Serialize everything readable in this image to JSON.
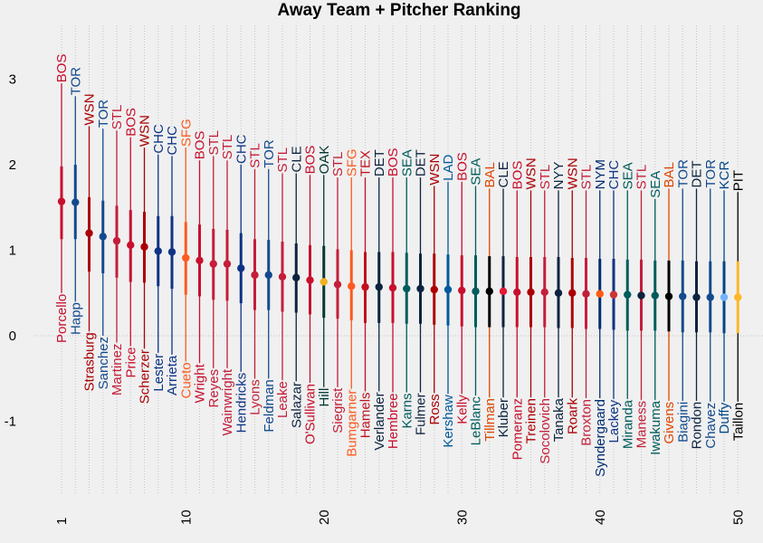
{
  "chart_data": {
    "type": "scatter",
    "title": "Away Team + Pitcher Ranking",
    "xlabel": "",
    "ylabel": "",
    "xlim": [
      0.2,
      51.8
    ],
    "ylim": [
      -1.85,
      3.9
    ],
    "x_ticks": [
      1,
      10,
      20,
      30,
      40,
      50
    ],
    "y_ticks": [
      -1,
      0,
      1,
      2,
      3
    ],
    "grid": "vertical dotted lines at each rank",
    "points": [
      {
        "rank": 1,
        "pitcher": "Porcello",
        "team": "BOS",
        "mean": 1.57,
        "low": 1.13,
        "high": 1.98,
        "low_outer": 0.5,
        "high_outer": 2.95,
        "color": "#C8102E"
      },
      {
        "rank": 2,
        "pitcher": "Happ",
        "team": "TOR",
        "mean": 1.56,
        "low": 1.13,
        "high": 2.0,
        "low_outer": 0.4,
        "high_outer": 2.8,
        "color": "#134A8E"
      },
      {
        "rank": 3,
        "pitcher": "Strasburg",
        "team": "WSN",
        "mean": 1.2,
        "low": 0.75,
        "high": 1.62,
        "low_outer": 0.05,
        "high_outer": 2.45,
        "color": "#AB0003"
      },
      {
        "rank": 4,
        "pitcher": "Sanchez",
        "team": "TOR",
        "mean": 1.16,
        "low": 0.73,
        "high": 1.58,
        "low_outer": 0.0,
        "high_outer": 2.42,
        "color": "#134A8E"
      },
      {
        "rank": 5,
        "pitcher": "Martinez",
        "team": "STL",
        "mean": 1.11,
        "low": 0.68,
        "high": 1.52,
        "low_outer": -0.08,
        "high_outer": 2.4,
        "color": "#C41E3A"
      },
      {
        "rank": 6,
        "pitcher": "Price",
        "team": "BOS",
        "mean": 1.06,
        "low": 0.63,
        "high": 1.47,
        "low_outer": -0.12,
        "high_outer": 2.32,
        "color": "#C8102E"
      },
      {
        "rank": 7,
        "pitcher": "Scherzer",
        "team": "WSN",
        "mean": 1.04,
        "low": 0.62,
        "high": 1.45,
        "low_outer": -0.15,
        "high_outer": 2.2,
        "color": "#AB0003"
      },
      {
        "rank": 8,
        "pitcher": "Lester",
        "team": "CHC",
        "mean": 0.99,
        "low": 0.58,
        "high": 1.4,
        "low_outer": -0.2,
        "high_outer": 2.12,
        "color": "#0E3386"
      },
      {
        "rank": 9,
        "pitcher": "Arrieta",
        "team": "CHC",
        "mean": 0.98,
        "low": 0.55,
        "high": 1.4,
        "low_outer": -0.22,
        "high_outer": 2.1,
        "color": "#0E3386"
      },
      {
        "rank": 10,
        "pitcher": "Cueto",
        "team": "SFG",
        "mean": 0.91,
        "low": 0.48,
        "high": 1.33,
        "low_outer": -0.3,
        "high_outer": 2.2,
        "color": "#FD5A1E"
      },
      {
        "rank": 11,
        "pitcher": "Wright",
        "team": "BOS",
        "mean": 0.88,
        "low": 0.46,
        "high": 1.3,
        "low_outer": -0.32,
        "high_outer": 2.05,
        "color": "#C8102E"
      },
      {
        "rank": 12,
        "pitcher": "Reyes",
        "team": "STL",
        "mean": 0.84,
        "low": 0.42,
        "high": 1.25,
        "low_outer": -0.38,
        "high_outer": 2.1,
        "color": "#C41E3A"
      },
      {
        "rank": 13,
        "pitcher": "Wainwright",
        "team": "STL",
        "mean": 0.84,
        "low": 0.41,
        "high": 1.24,
        "low_outer": -0.38,
        "high_outer": 2.05,
        "color": "#C41E3A"
      },
      {
        "rank": 14,
        "pitcher": "Hendricks",
        "team": "CHC",
        "mean": 0.79,
        "low": 0.38,
        "high": 1.2,
        "low_outer": -0.42,
        "high_outer": 2.0,
        "color": "#0E3386"
      },
      {
        "rank": 15,
        "pitcher": "Lyons",
        "team": "STL",
        "mean": 0.71,
        "low": 0.3,
        "high": 1.13,
        "low_outer": -0.5,
        "high_outer": 1.95,
        "color": "#C41E3A"
      },
      {
        "rank": 16,
        "pitcher": "Feldman",
        "team": "TOR",
        "mean": 0.71,
        "low": 0.3,
        "high": 1.12,
        "low_outer": -0.5,
        "high_outer": 1.95,
        "color": "#134A8E"
      },
      {
        "rank": 17,
        "pitcher": "Leake",
        "team": "STL",
        "mean": 0.69,
        "low": 0.28,
        "high": 1.1,
        "low_outer": -0.52,
        "high_outer": 1.9,
        "color": "#C41E3A"
      },
      {
        "rank": 18,
        "pitcher": "Salazar",
        "team": "CLE",
        "mean": 0.68,
        "low": 0.27,
        "high": 1.08,
        "low_outer": -0.53,
        "high_outer": 1.9,
        "color": "#0C2340"
      },
      {
        "rank": 19,
        "pitcher": "O'Sullivan",
        "team": "BOS",
        "mean": 0.65,
        "low": 0.25,
        "high": 1.06,
        "low_outer": -0.55,
        "high_outer": 1.88,
        "color": "#C8102E"
      },
      {
        "rank": 20,
        "pitcher": "Hill",
        "team": "OAK",
        "mean": 0.63,
        "low": 0.21,
        "high": 1.05,
        "low_outer": -0.6,
        "high_outer": 1.88,
        "color": "#003831",
        "dot_color": "#EFB21E"
      },
      {
        "rank": 21,
        "pitcher": "Siegrist",
        "team": "STL",
        "mean": 0.6,
        "low": 0.2,
        "high": 1.01,
        "low_outer": -0.6,
        "high_outer": 1.85,
        "color": "#C41E3A"
      },
      {
        "rank": 22,
        "pitcher": "Bumgarner",
        "team": "SFG",
        "mean": 0.58,
        "low": 0.18,
        "high": 1.0,
        "low_outer": -0.62,
        "high_outer": 1.85,
        "color": "#FD5A1E",
        "dot_color": "#FD5A1E"
      },
      {
        "rank": 23,
        "pitcher": "Hamels",
        "team": "TEX",
        "mean": 0.57,
        "low": 0.15,
        "high": 0.98,
        "low_outer": -0.65,
        "high_outer": 1.85,
        "color": "#C0111F"
      },
      {
        "rank": 24,
        "pitcher": "Verlander",
        "team": "DET",
        "mean": 0.57,
        "low": 0.15,
        "high": 0.98,
        "low_outer": -0.65,
        "high_outer": 1.85,
        "color": "#0C2340"
      },
      {
        "rank": 25,
        "pitcher": "Hembree",
        "team": "BOS",
        "mean": 0.56,
        "low": 0.15,
        "high": 0.98,
        "low_outer": -0.66,
        "high_outer": 1.85,
        "color": "#C8102E"
      },
      {
        "rank": 26,
        "pitcher": "Karns",
        "team": "SEA",
        "mean": 0.55,
        "low": 0.14,
        "high": 0.97,
        "low_outer": -0.66,
        "high_outer": 1.85,
        "color": "#005C5C"
      },
      {
        "rank": 27,
        "pitcher": "Fulmer",
        "team": "DET",
        "mean": 0.55,
        "low": 0.14,
        "high": 0.96,
        "low_outer": -0.66,
        "high_outer": 1.85,
        "color": "#0C2340"
      },
      {
        "rank": 28,
        "pitcher": "Ross",
        "team": "WSN",
        "mean": 0.54,
        "low": 0.13,
        "high": 0.96,
        "low_outer": -0.67,
        "high_outer": 1.75,
        "color": "#AB0003"
      },
      {
        "rank": 29,
        "pitcher": "Kershaw",
        "team": "LAD",
        "mean": 0.54,
        "low": 0.12,
        "high": 0.95,
        "low_outer": -0.68,
        "high_outer": 1.8,
        "color": "#005A9C"
      },
      {
        "rank": 30,
        "pitcher": "Kelly",
        "team": "BOS",
        "mean": 0.53,
        "low": 0.11,
        "high": 0.94,
        "low_outer": -0.68,
        "high_outer": 1.8,
        "color": "#C8102E"
      },
      {
        "rank": 31,
        "pitcher": "LeBlanc",
        "team": "SEA",
        "mean": 0.52,
        "low": 0.1,
        "high": 0.94,
        "low_outer": -0.7,
        "high_outer": 1.75,
        "color": "#005C5C"
      },
      {
        "rank": 32,
        "pitcher": "Tillman",
        "team": "BAL",
        "mean": 0.52,
        "low": 0.1,
        "high": 0.93,
        "low_outer": -0.72,
        "high_outer": 1.72,
        "color": "#DF4601",
        "dot_color": "#000000",
        "band": "#000000"
      },
      {
        "rank": 33,
        "pitcher": "Kluber",
        "team": "CLE",
        "mean": 0.52,
        "low": 0.1,
        "high": 0.93,
        "low_outer": -0.72,
        "high_outer": 1.72,
        "color": "#0C2340",
        "dot_color": "#E31937"
      },
      {
        "rank": 34,
        "pitcher": "Pomeranz",
        "team": "BOS",
        "mean": 0.51,
        "low": 0.1,
        "high": 0.92,
        "low_outer": -0.72,
        "high_outer": 1.7,
        "color": "#C8102E"
      },
      {
        "rank": 35,
        "pitcher": "Treinen",
        "team": "WSN",
        "mean": 0.51,
        "low": 0.1,
        "high": 0.92,
        "low_outer": -0.72,
        "high_outer": 1.7,
        "color": "#AB0003"
      },
      {
        "rank": 36,
        "pitcher": "Socolovich",
        "team": "STL",
        "mean": 0.51,
        "low": 0.1,
        "high": 0.92,
        "low_outer": -0.72,
        "high_outer": 1.7,
        "color": "#C41E3A"
      },
      {
        "rank": 37,
        "pitcher": "Tanaka",
        "team": "NYY",
        "mean": 0.5,
        "low": 0.09,
        "high": 0.92,
        "low_outer": -0.72,
        "high_outer": 1.7,
        "color": "#0C2340"
      },
      {
        "rank": 38,
        "pitcher": "Roark",
        "team": "WSN",
        "mean": 0.5,
        "low": 0.09,
        "high": 0.91,
        "low_outer": -0.72,
        "high_outer": 1.7,
        "color": "#AB0003"
      },
      {
        "rank": 39,
        "pitcher": "Broxton",
        "team": "STL",
        "mean": 0.49,
        "low": 0.08,
        "high": 0.91,
        "low_outer": -0.73,
        "high_outer": 1.7,
        "color": "#C41E3A"
      },
      {
        "rank": 40,
        "pitcher": "Syndergaard",
        "team": "NYM",
        "mean": 0.49,
        "low": 0.08,
        "high": 0.9,
        "low_outer": -0.73,
        "high_outer": 1.7,
        "color": "#002D72",
        "dot_color": "#FF5910"
      },
      {
        "rank": 41,
        "pitcher": "Lackey",
        "team": "CHC",
        "mean": 0.48,
        "low": 0.07,
        "high": 0.9,
        "low_outer": -0.74,
        "high_outer": 1.7,
        "color": "#0E3386",
        "dot_color": "#CC3433"
      },
      {
        "rank": 42,
        "pitcher": "Miranda",
        "team": "SEA",
        "mean": 0.48,
        "low": 0.06,
        "high": 0.89,
        "low_outer": -0.74,
        "high_outer": 1.7,
        "color": "#005C5C"
      },
      {
        "rank": 43,
        "pitcher": "Maness",
        "team": "STL",
        "mean": 0.47,
        "low": 0.06,
        "high": 0.89,
        "low_outer": -0.75,
        "high_outer": 1.7,
        "color": "#C41E3A",
        "dot_color": "#0C2340"
      },
      {
        "rank": 44,
        "pitcher": "Iwakuma",
        "team": "SEA",
        "mean": 0.47,
        "low": 0.06,
        "high": 0.88,
        "low_outer": -0.75,
        "high_outer": 1.6,
        "color": "#005C5C"
      },
      {
        "rank": 45,
        "pitcher": "Givens",
        "team": "BAL",
        "mean": 0.46,
        "low": 0.05,
        "high": 0.88,
        "low_outer": -0.76,
        "high_outer": 1.72,
        "color": "#DF4601",
        "dot_color": "#000000",
        "band": "#000000"
      },
      {
        "rank": 46,
        "pitcher": "Biagini",
        "team": "TOR",
        "mean": 0.46,
        "low": 0.04,
        "high": 0.88,
        "low_outer": -0.76,
        "high_outer": 1.72,
        "color": "#134A8E"
      },
      {
        "rank": 47,
        "pitcher": "Rondon",
        "team": "DET",
        "mean": 0.45,
        "low": 0.04,
        "high": 0.87,
        "low_outer": -0.76,
        "high_outer": 1.72,
        "color": "#0C2340"
      },
      {
        "rank": 48,
        "pitcher": "Chavez",
        "team": "TOR",
        "mean": 0.45,
        "low": 0.04,
        "high": 0.87,
        "low_outer": -0.77,
        "high_outer": 1.72,
        "color": "#134A8E"
      },
      {
        "rank": 49,
        "pitcher": "Duffy",
        "team": "KCR",
        "mean": 0.45,
        "low": 0.03,
        "high": 0.87,
        "low_outer": -0.77,
        "high_outer": 1.7,
        "color": "#004687",
        "dot_color": "#74B4FA"
      },
      {
        "rank": 50,
        "pitcher": "Taillon",
        "team": "PIT",
        "mean": 0.45,
        "low": 0.03,
        "high": 0.87,
        "low_outer": -0.77,
        "high_outer": 1.68,
        "color": "#000000",
        "dot_color": "#FDB827",
        "band": "#FDB827"
      }
    ]
  }
}
